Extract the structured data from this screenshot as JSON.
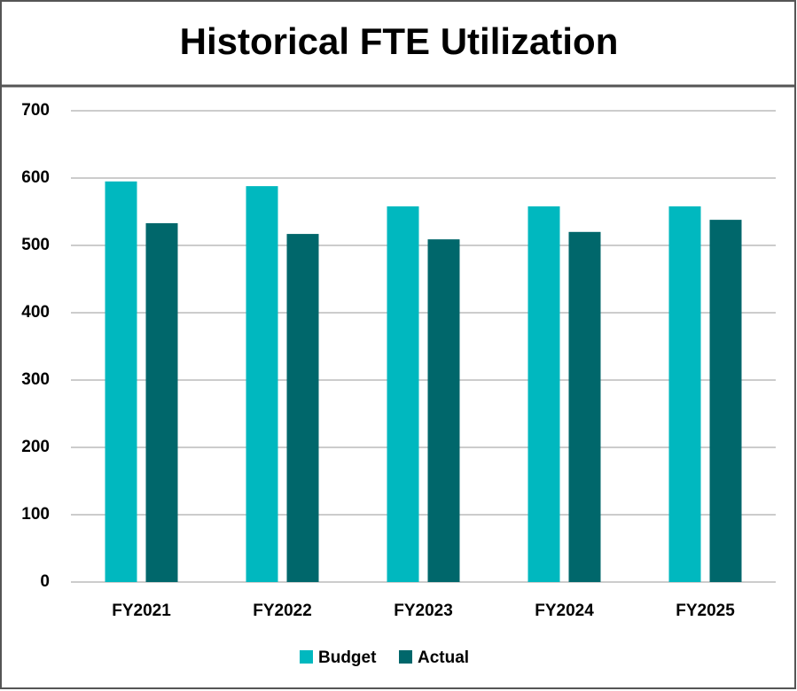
{
  "chart_data": {
    "type": "bar",
    "title": "Historical FTE Utilization",
    "categories": [
      "FY2021",
      "FY2022",
      "FY2023",
      "FY2024",
      "FY2025"
    ],
    "series": [
      {
        "name": "Budget",
        "color": "#00b8bf",
        "values": [
          595,
          588,
          558,
          558,
          558
        ]
      },
      {
        "name": "Actual",
        "color": "#00676b",
        "values": [
          533,
          517,
          509,
          520,
          538
        ]
      }
    ],
    "ylim": [
      0,
      700
    ],
    "yticks": [
      0,
      100,
      200,
      300,
      400,
      500,
      600,
      700
    ],
    "grid": true,
    "legend": "bottom"
  }
}
